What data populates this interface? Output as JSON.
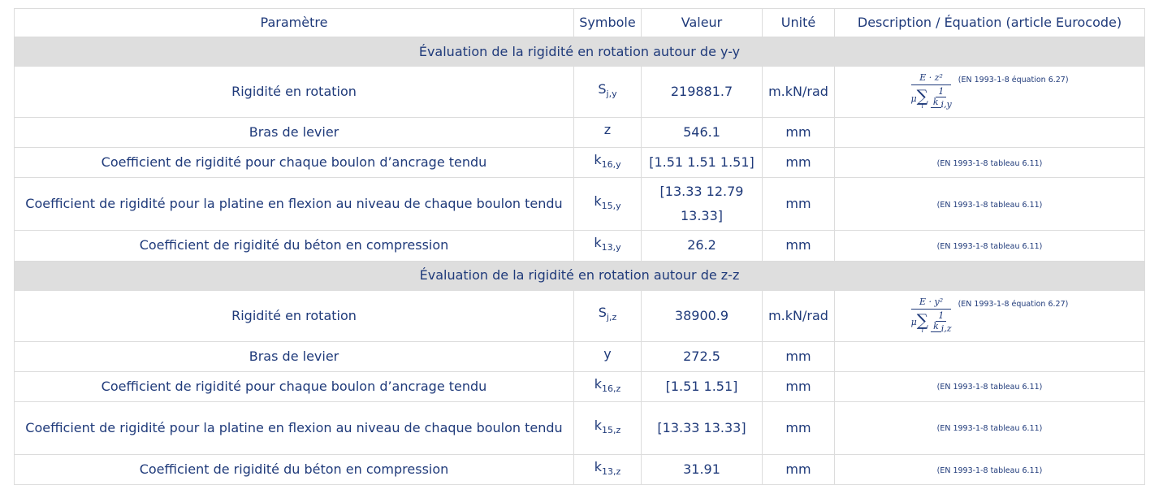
{
  "headers": [
    "Paramètre",
    "Symbole",
    "Valeur",
    "Unité",
    "Description / Équation (article Eurocode)"
  ],
  "sections": [
    {
      "title": "Évaluation de la rigidité en rotation autour de y-y",
      "rows": [
        {
          "param": "Rigidité en rotation",
          "sym": "S",
          "sub": "j,y",
          "value": "219881.7",
          "unit": "m.kN/rad",
          "desc": "(EN 1993-1-8 équation 6.27)",
          "formula": {
            "num": "E · z²",
            "sum_index": "i",
            "inner_num": "1",
            "inner_den": "k",
            "inner_den_sub": "i,y"
          }
        },
        {
          "param": "Bras de levier",
          "sym": "z",
          "sub": "",
          "value": "546.1",
          "unit": "mm",
          "desc": ""
        },
        {
          "param": "Coefficient de rigidité pour chaque boulon d’ancrage tendu",
          "sym": "k",
          "sub": "16,y",
          "value": "[1.51 1.51 1.51]",
          "unit": "mm",
          "desc": "(EN 1993-1-8 tableau 6.11)"
        },
        {
          "param": "Coefficient de rigidité pour la platine en flexion au niveau de chaque boulon tendu",
          "sym": "k",
          "sub": "15,y",
          "value": "[13.33 12.79 13.33]",
          "unit": "mm",
          "desc": "(EN 1993-1-8 tableau 6.11)"
        },
        {
          "param": "Coefficient de rigidité du béton en compression",
          "sym": "k",
          "sub": "13,y",
          "value": "26.2",
          "unit": "mm",
          "desc": "(EN 1993-1-8 tableau 6.11)"
        }
      ]
    },
    {
      "title": "Évaluation de la rigidité en rotation autour de z-z",
      "rows": [
        {
          "param": "Rigidité en rotation",
          "sym": "S",
          "sub": "j,z",
          "value": "38900.9",
          "unit": "m.kN/rad",
          "desc": "(EN 1993-1-8 équation 6.27)",
          "formula": {
            "num": "E · y²",
            "sum_index": "i",
            "inner_num": "1",
            "inner_den": "k",
            "inner_den_sub": "i,z"
          }
        },
        {
          "param": "Bras de levier",
          "sym": "y",
          "sub": "",
          "value": "272.5",
          "unit": "mm",
          "desc": ""
        },
        {
          "param": "Coefficient de rigidité pour chaque boulon d’ancrage tendu",
          "sym": "k",
          "sub": "16,z",
          "value": "[1.51 1.51]",
          "unit": "mm",
          "desc": "(EN 1993-1-8 tableau 6.11)"
        },
        {
          "param": "Coefficient de rigidité pour la platine en flexion au niveau de chaque boulon tendu",
          "sym": "k",
          "sub": "15,z",
          "value": "[13.33 13.33]",
          "unit": "mm",
          "desc": "(EN 1993-1-8 tableau 6.11)"
        },
        {
          "param": "Coefficient de rigidité du béton en compression",
          "sym": "k",
          "sub": "13,z",
          "value": "31.91",
          "unit": "mm",
          "desc": "(EN 1993-1-8 tableau 6.11)"
        }
      ]
    }
  ]
}
